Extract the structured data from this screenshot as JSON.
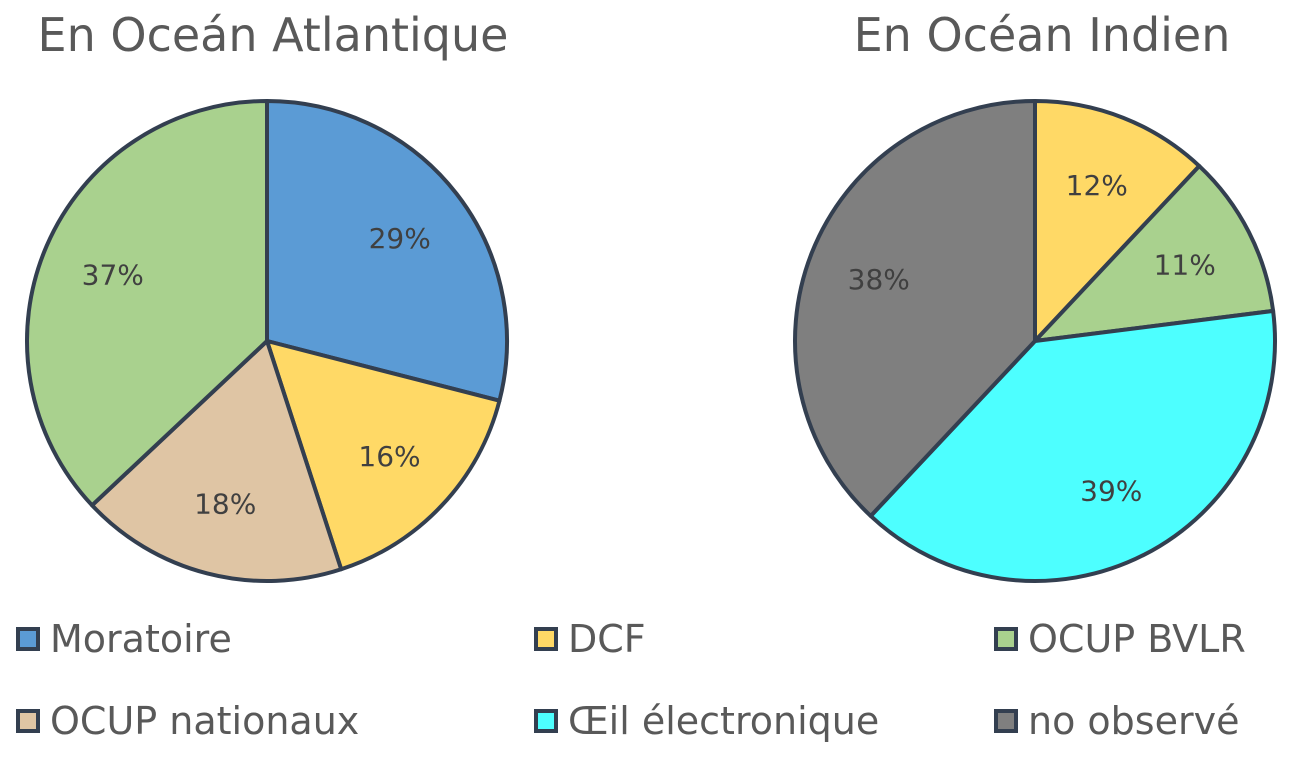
{
  "chart_data": [
    {
      "type": "pie",
      "title": "En Oceán Atlantique",
      "slices": [
        {
          "label": "Moratoire",
          "value": 29,
          "data_label": "29%",
          "color": "#5b9bd5"
        },
        {
          "label": "DCF",
          "value": 16,
          "data_label": "16%",
          "color": "#ffd966"
        },
        {
          "label": "OCUP nationaux",
          "value": 18,
          "data_label": "18%",
          "color": "#dfc5a4"
        },
        {
          "label": "OCUP BVLR",
          "value": 37,
          "data_label": "37%",
          "color": "#a9d18e"
        }
      ]
    },
    {
      "type": "pie",
      "title": "En Océan Indien",
      "slices": [
        {
          "label": "DCF",
          "value": 12,
          "data_label": "12%",
          "color": "#ffd966"
        },
        {
          "label": "OCUP BVLR",
          "value": 11,
          "data_label": "11%",
          "color": "#a9d18e"
        },
        {
          "label": "Œil électronique",
          "value": 39,
          "data_label": "39%",
          "color": "#4dffff"
        },
        {
          "label": "no observé",
          "value": 38,
          "data_label": "38%",
          "color": "#7f7f7f"
        }
      ]
    }
  ],
  "legend": [
    {
      "label": "Moratoire",
      "color": "#5b9bd5"
    },
    {
      "label": "DCF",
      "color": "#ffd966"
    },
    {
      "label": "OCUP BVLR",
      "color": "#a9d18e"
    },
    {
      "label": "OCUP nationaux",
      "color": "#dfc5a4"
    },
    {
      "label": "Œil électronique",
      "color": "#4dffff"
    },
    {
      "label": "no observé",
      "color": "#7f7f7f"
    }
  ],
  "legend_position": "bottom",
  "border_color": "#333f50"
}
